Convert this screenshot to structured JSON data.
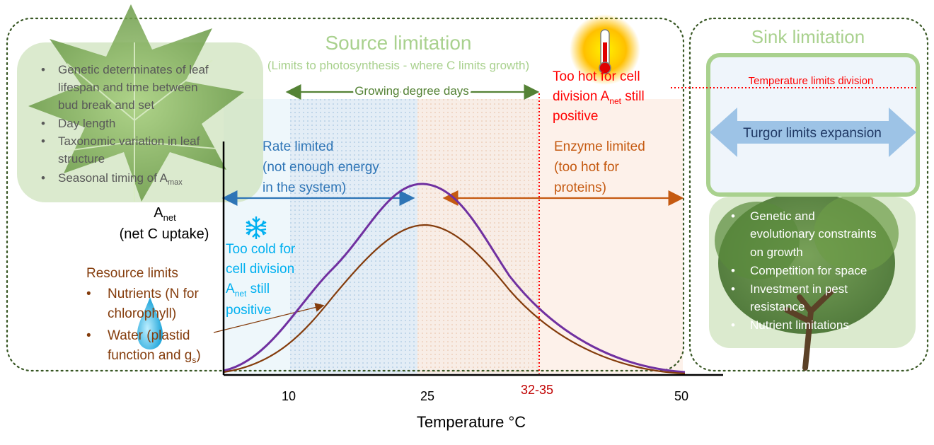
{
  "colors": {
    "source_title": "#a9d18e",
    "sink_title": "#a9d18e",
    "rate": "#2e75b6",
    "enzyme": "#c55a11",
    "resource": "#843c0c",
    "cold": "#00b0f0",
    "hot": "#ff0000",
    "curve_upper": "#7030a0",
    "curve_lower": "#843c0c",
    "arrow_gdd": "#548235",
    "dotted_border": "#375623",
    "turgor_fill": "#9dc3e6",
    "leaf_text": "#595959"
  },
  "source": {
    "title": "Source limitation",
    "subtitle": "(Limits to photosynthesis - where C limits growth)",
    "gdd_label": "Growing degree days",
    "leaf_bullets": [
      {
        "lines": [
          "Genetic determinates of leaf",
          "lifespan and time between",
          "bud break and set"
        ]
      },
      {
        "lines": [
          "Day length"
        ]
      },
      {
        "lines": [
          "Taxonomic variation in leaf",
          "structure"
        ]
      },
      {
        "lines": [
          "Seasonal timing of A"
        ],
        "sub": "max"
      }
    ],
    "hot_lines": [
      "Too hot for cell",
      "division A",
      "still",
      "positive"
    ],
    "hot_sub": "net",
    "rate_lines": [
      "Rate limited",
      "(not enough energy",
      "in the system)"
    ],
    "enzyme_lines": [
      "Enzyme limited",
      "(too hot for",
      "proteins)"
    ],
    "cold_lines": [
      "Too cold for",
      "cell division",
      "A",
      "still",
      "positive"
    ],
    "cold_sub": "net",
    "y_label_main": "A",
    "y_label_sub": "net",
    "y_label_2": "(net C uptake)",
    "resource_title": "Resource limits",
    "resource_lines": [
      "Nutrients (N for",
      "chlorophyll)",
      "Water (plastid",
      "function and g"
    ],
    "resource_sub": "s",
    "resource_close": ")"
  },
  "sink": {
    "title": "Sink limitation",
    "temp_limits": "Temperature limits division",
    "turgor": "Turgor limits expansion",
    "tree_bullets": [
      {
        "lines": [
          "Genetic and",
          "evolutionary constraints",
          "on growth"
        ]
      },
      {
        "lines": [
          "Competition for space"
        ]
      },
      {
        "lines": [
          "Investment in pest",
          "resistance"
        ]
      },
      {
        "lines": [
          "Nutrient limitations"
        ]
      }
    ]
  },
  "x_axis": {
    "title": "Temperature °C",
    "ticks": [
      "10",
      "25",
      "32-35",
      "50"
    ]
  }
}
